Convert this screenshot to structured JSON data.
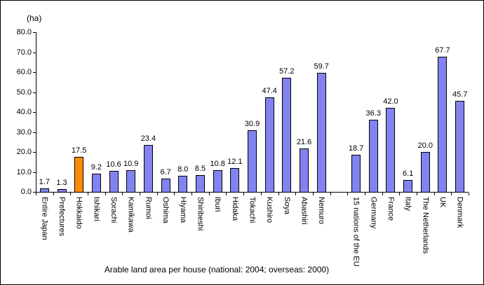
{
  "chart_data": {
    "type": "bar",
    "title": "Arable land area per house (national: 2004; overseas: 2000)",
    "unit_label": "(ha)",
    "ylabel": "",
    "xlabel": "",
    "ylim": [
      0,
      80
    ],
    "ytick_interval": 10,
    "ytick_labels": [
      "80.0",
      "70.0",
      "60.0",
      "50.0",
      "40.0",
      "30.0",
      "20.0",
      "10.0",
      "0.0"
    ],
    "grid": false,
    "legend": false,
    "bar_color": "#8282F0",
    "bar_border_color": "#000000",
    "highlight_color": "#FF8C00",
    "highlight_category": "Hokkaido",
    "categories": [
      "Entire Japan",
      "Prefectures",
      "Hokkaido",
      "Ishikari",
      "Sorachi",
      "Kamikawa",
      "Rumoi",
      "Oshima",
      "Hiyama",
      "Shiribeshi",
      "Iburi",
      "Hidaka",
      "Tokachi",
      "Kushiro",
      "Soya",
      "Abashiri",
      "Nemuro",
      "15 nations of the EU",
      "Germany",
      "France",
      "Italy",
      "The Netherlands",
      "UK",
      "Denmark"
    ],
    "values": [
      1.7,
      1.3,
      17.5,
      9.2,
      10.6,
      10.9,
      23.4,
      6.7,
      8.0,
      8.5,
      10.8,
      12.1,
      30.9,
      47.4,
      57.2,
      21.6,
      59.7,
      18.7,
      36.3,
      42.0,
      6.1,
      20.0,
      67.7,
      45.7
    ],
    "items": [
      {
        "label": "Entire Japan",
        "value": 1.7
      },
      {
        "label": "Prefectures",
        "value": 1.3
      },
      {
        "label": "Hokkaido",
        "value": 17.5,
        "highlight": true
      },
      {
        "label": "Ishikari",
        "value": 9.2
      },
      {
        "label": "Sorachi",
        "value": 10.6
      },
      {
        "label": "Kamikawa",
        "value": 10.9
      },
      {
        "label": "Rumoi",
        "value": 23.4
      },
      {
        "label": "Oshima",
        "value": 6.7
      },
      {
        "label": "Hiyama",
        "value": 8.0
      },
      {
        "label": "Shiribeshi",
        "value": 8.5
      },
      {
        "label": "Iburi",
        "value": 10.8
      },
      {
        "label": "Hidaka",
        "value": 12.1
      },
      {
        "label": "Tokachi",
        "value": 30.9
      },
      {
        "label": "Kushiro",
        "value": 47.4
      },
      {
        "label": "Soya",
        "value": 57.2
      },
      {
        "label": "Abashiri",
        "value": 21.6
      },
      {
        "label": "Nemuro",
        "value": 59.7
      },
      {
        "spacer": true
      },
      {
        "label": "15 nations of the EU",
        "value": 18.7
      },
      {
        "label": "Germany",
        "value": 36.3
      },
      {
        "label": "France",
        "value": 42.0
      },
      {
        "label": "Italy",
        "value": 6.1
      },
      {
        "label": "The Netherlands",
        "value": 20.0
      },
      {
        "label": "UK",
        "value": 67.7
      },
      {
        "label": "Denmark",
        "value": 45.7
      }
    ]
  }
}
